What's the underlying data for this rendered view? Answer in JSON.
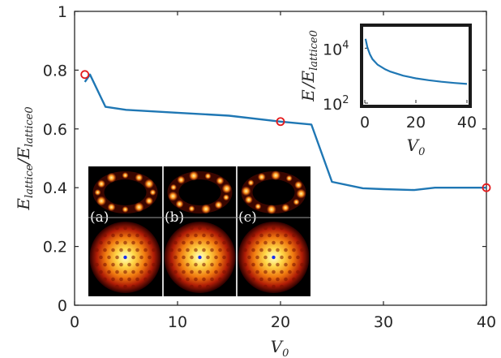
{
  "chart_data": [
    {
      "type": "line",
      "x": [
        1,
        1.5,
        3,
        5,
        10,
        15,
        20,
        23,
        25,
        28,
        30,
        33,
        35,
        40
      ],
      "y": [
        0.76,
        0.785,
        0.675,
        0.665,
        0.655,
        0.645,
        0.625,
        0.615,
        0.42,
        0.398,
        0.395,
        0.392,
        0.4,
        0.4
      ],
      "markers": {
        "x": [
          1,
          20,
          40
        ],
        "y": [
          0.785,
          0.625,
          0.4
        ]
      },
      "xlabel": "V0",
      "ylabel": "Elattice/Elattice0",
      "xlim": [
        0,
        40
      ],
      "ylim": [
        0,
        1
      ],
      "xticks": [
        "0",
        "10",
        "20",
        "30",
        "40"
      ],
      "yticks": [
        "0",
        "0.2",
        "0.4",
        "0.6",
        "0.8",
        "1"
      ],
      "grid": false
    },
    {
      "type": "line",
      "scale_y": "log",
      "x": [
        0.3,
        0.6,
        1,
        1.5,
        2,
        3,
        5,
        8,
        10,
        15,
        20,
        25,
        30,
        35,
        40
      ],
      "y": [
        22000,
        16000,
        11000,
        8000,
        6000,
        4000,
        2500,
        1700,
        1400,
        1000,
        800,
        680,
        600,
        540,
        500
      ],
      "xlabel": "V0",
      "ylabel": "E/Elattice0",
      "xlim": [
        0,
        40
      ],
      "xticks": [
        "0",
        "20",
        "40"
      ],
      "ytick_bases": [
        "10",
        "10"
      ],
      "ytick_exponents": [
        "4",
        "2"
      ]
    }
  ],
  "colors": {
    "line": "#1f77b4",
    "marker": "#e41a1c",
    "axis": "#262626"
  },
  "panels": [
    {
      "label": "(a)"
    },
    {
      "label": "(b)"
    },
    {
      "label": "(c)"
    }
  ],
  "axis_text": {
    "x_main": "V",
    "x_sub": "0",
    "y_main_1": "E",
    "y_sub_1": "lattice",
    "y_sep": "/",
    "y_main_2": "E",
    "y_sub_2": "lattice0",
    "inset_y_main_1": "E",
    "inset_y_sep": "/",
    "inset_y_main_2": "E",
    "inset_y_sub_2": "lattice0"
  }
}
